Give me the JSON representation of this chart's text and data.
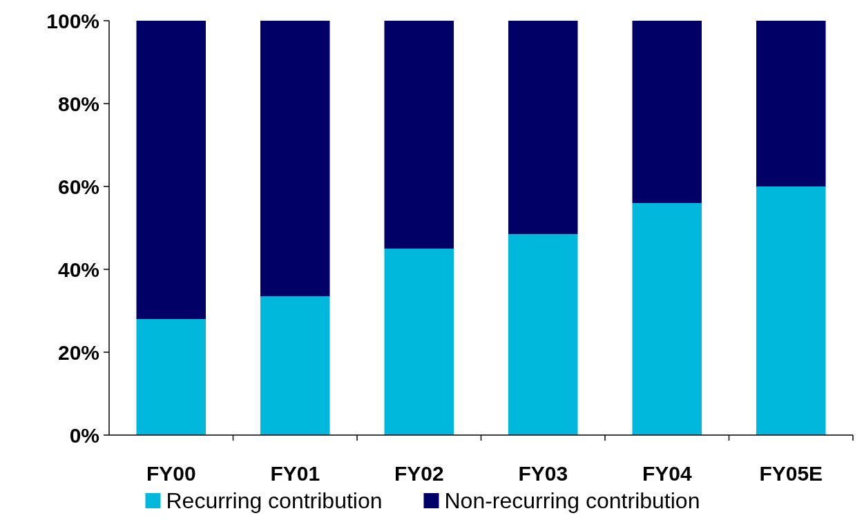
{
  "chart_data": {
    "type": "bar",
    "stacked": true,
    "categories": [
      "FY00",
      "FY01",
      "FY02",
      "FY03",
      "FY04",
      "FY05E"
    ],
    "series": [
      {
        "name": "Recurring contribution",
        "color": "#00b8dc",
        "values": [
          28,
          33.5,
          45,
          48.5,
          56,
          60
        ]
      },
      {
        "name": "Non-recurring contribution",
        "color": "#000066",
        "values": [
          72,
          66.5,
          55,
          51.5,
          44,
          40
        ]
      }
    ],
    "ylim": [
      0,
      100
    ],
    "yticks": [
      {
        "value": 0,
        "label": "0%"
      },
      {
        "value": 20,
        "label": "20%"
      },
      {
        "value": 40,
        "label": "40%"
      },
      {
        "value": 60,
        "label": "60%"
      },
      {
        "value": 80,
        "label": "80%"
      },
      {
        "value": 100,
        "label": "100%"
      }
    ],
    "grid": false,
    "legend": "bottom"
  }
}
